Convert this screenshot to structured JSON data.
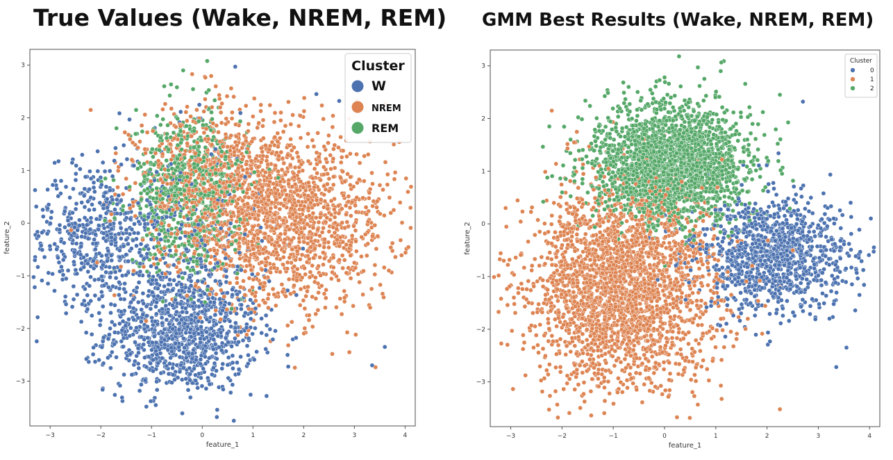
{
  "chart_data": [
    {
      "type": "scatter",
      "title": "True Values (Wake, NREM, REM)",
      "xlabel": "feature_1",
      "ylabel": "feature_2",
      "xlim": [
        -3.4,
        4.2
      ],
      "ylim": [
        -3.85,
        3.3
      ],
      "xticks": [
        -3,
        -2,
        -1,
        0,
        1,
        2,
        3,
        4
      ],
      "yticks": [
        -3,
        -2,
        -1,
        0,
        1,
        2,
        3
      ],
      "grid": false,
      "legend": {
        "title": "Cluster",
        "placement": "top-right"
      },
      "series": [
        {
          "name": "W",
          "color": "#4c72b0",
          "clusters": [
            {
              "center": [
                -0.4,
                -2.1
              ],
              "spread": [
                0.75,
                0.55
              ],
              "count": 950
            },
            {
              "center": [
                -2.2,
                -0.2
              ],
              "spread": [
                0.6,
                0.65
              ],
              "count": 420
            },
            {
              "center": [
                -0.6,
                -0.4
              ],
              "spread": [
                0.9,
                1.0
              ],
              "count": 380
            }
          ],
          "extra_points": [
            [
              0.65,
              2.97
            ],
            [
              2.25,
              2.45
            ],
            [
              2.7,
              2.32
            ],
            [
              3.35,
              -2.7
            ],
            [
              3.6,
              -2.35
            ],
            [
              -3.05,
              0.28
            ]
          ]
        },
        {
          "name": "NREM",
          "color": "#dd8452",
          "clusters": [
            {
              "center": [
                1.6,
                0.0
              ],
              "spread": [
                1.1,
                0.8
              ],
              "count": 1500
            },
            {
              "center": [
                0.3,
                0.9
              ],
              "spread": [
                0.8,
                0.7
              ],
              "count": 650
            }
          ],
          "extra_points": [
            [
              0.05,
              2.78
            ],
            [
              3.75,
              -0.38
            ],
            [
              -2.2,
              2.15
            ],
            [
              2.9,
              -2.45
            ]
          ]
        },
        {
          "name": "REM",
          "color": "#55a868",
          "clusters": [
            {
              "center": [
                -0.3,
                0.6
              ],
              "spread": [
                0.55,
                0.75
              ],
              "count": 700
            }
          ],
          "extra_points": [
            [
              -0.75,
              2.6
            ],
            [
              -0.5,
              2.58
            ]
          ]
        }
      ]
    },
    {
      "type": "scatter",
      "title": "GMM Best Results (Wake, NREM, REM)",
      "xlabel": "feature_1",
      "ylabel": "feature_2",
      "xlim": [
        -3.4,
        4.2
      ],
      "ylim": [
        -3.85,
        3.3
      ],
      "xticks": [
        -3,
        -2,
        -1,
        0,
        1,
        2,
        3,
        4
      ],
      "yticks": [
        -3,
        -2,
        -1,
        0,
        1,
        2,
        3
      ],
      "grid": false,
      "legend": {
        "title": "Cluster",
        "placement": "top-right"
      },
      "series": [
        {
          "name": "0",
          "color": "#4c72b0",
          "clusters": [
            {
              "center": [
                2.1,
                -0.6
              ],
              "spread": [
                0.75,
                0.55
              ],
              "count": 1100
            }
          ],
          "extra_points": [
            [
              2.7,
              2.32
            ],
            [
              3.35,
              -2.72
            ],
            [
              3.55,
              -2.35
            ],
            [
              3.6,
              -0.38
            ]
          ]
        },
        {
          "name": "1",
          "color": "#dd8452",
          "clusters": [
            {
              "center": [
                -0.8,
                -1.2
              ],
              "spread": [
                0.9,
                0.95
              ],
              "count": 2600
            }
          ],
          "extra_points": [
            [
              -3.1,
              0.3
            ],
            [
              -2.2,
              2.15
            ],
            [
              2.25,
              -3.52
            ],
            [
              -1.4,
              -2.95
            ]
          ]
        },
        {
          "name": "2",
          "color": "#55a868",
          "clusters": [
            {
              "center": [
                0.1,
                1.15
              ],
              "spread": [
                0.75,
                0.55
              ],
              "count": 2200
            }
          ],
          "extra_points": [
            [
              0.65,
              2.97
            ],
            [
              2.25,
              2.45
            ],
            [
              0.0,
              2.78
            ],
            [
              -0.7,
              2.6
            ]
          ]
        }
      ]
    }
  ]
}
